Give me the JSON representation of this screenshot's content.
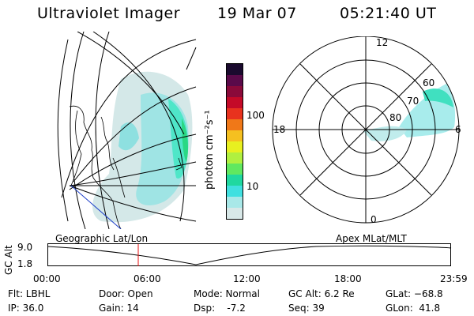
{
  "header": {
    "instrument": "Ultraviolet Imager",
    "date": "19 Mar 07",
    "time": "05:21:40 UT"
  },
  "colorbar": {
    "label": "photon cm⁻²s⁻¹",
    "ticks": [
      "100",
      "10"
    ],
    "colors": [
      "#1a0a2e",
      "#5a0a4a",
      "#8a0a3a",
      "#c40a28",
      "#e8321e",
      "#f07818",
      "#f5c020",
      "#e8f020",
      "#b0f040",
      "#60e860",
      "#20d8a0",
      "#40e0e0",
      "#a8e8e8",
      "#d8e8e8"
    ]
  },
  "polar_plot": {
    "mlt_labels": {
      "top": "12",
      "left": "18",
      "right": "6",
      "bottom": "0"
    },
    "lat_labels": [
      "60",
      "70",
      "80"
    ]
  },
  "orbit_panel": {
    "left_label": "Geographic Lat/Lon",
    "right_label": "Apex MLat/MLT",
    "axis_title": "GC Alt",
    "y_ticks": [
      "9.0",
      "1.8"
    ],
    "x_ticks": [
      "00:00",
      "06:00",
      "12:00",
      "18:00",
      "23:59"
    ]
  },
  "info": {
    "col1": [
      "Flt: LBHL",
      "IP: 36.0"
    ],
    "col2": [
      "Door: Open",
      "Gain: 14"
    ],
    "col3": [
      "Mode: Normal",
      "Dsp:    -7.2"
    ],
    "col4": [
      "GC Alt: 6.2 Re",
      "Seq: 39"
    ],
    "col5": [
      "GLat: −68.8",
      "GLon:  41.8"
    ]
  }
}
